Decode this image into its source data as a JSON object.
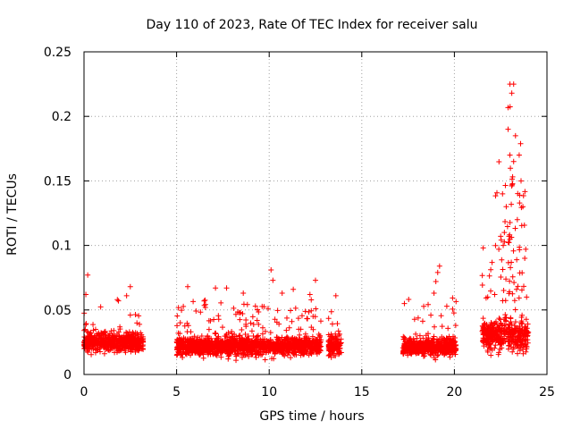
{
  "chart_data": {
    "type": "scatter",
    "title": "Day 110 of 2023, Rate Of TEC Index for receiver salu",
    "xlabel": "GPS time / hours",
    "ylabel": "ROTI / TECUs",
    "xlim": [
      0,
      25
    ],
    "ylim": [
      0,
      0.25
    ],
    "x_ticks": [
      0,
      5,
      10,
      15,
      20,
      25
    ],
    "x_tick_labels": [
      "0",
      "5",
      "10",
      "15",
      "20",
      "25"
    ],
    "y_ticks": [
      0,
      0.05,
      0.1,
      0.15,
      0.2,
      0.25
    ],
    "y_tick_labels": [
      "0",
      "0.05",
      "0.1",
      "0.15",
      "0.2",
      "0.25"
    ],
    "grid": true,
    "marker": "+",
    "color": "#ff0000",
    "segments": [
      {
        "x_start": 0.0,
        "x_end": 3.2,
        "base": 0.025,
        "spread": 0.012,
        "peak": 0.077
      },
      {
        "x_start": 5.0,
        "x_end": 12.8,
        "base": 0.022,
        "spread": 0.012,
        "peak": 0.081
      },
      {
        "x_start": 13.2,
        "x_end": 13.9,
        "base": 0.022,
        "spread": 0.012,
        "peak": 0.061
      },
      {
        "x_start": 17.2,
        "x_end": 20.1,
        "base": 0.022,
        "spread": 0.012,
        "peak": 0.084
      },
      {
        "x_start": 21.5,
        "x_end": 24.0,
        "base": 0.03,
        "spread": 0.02,
        "peak": 0.225
      }
    ],
    "highlights": [
      {
        "x": 0.2,
        "y": 0.077
      },
      {
        "x": 0.1,
        "y": 0.062
      },
      {
        "x": 1.8,
        "y": 0.058
      },
      {
        "x": 2.5,
        "y": 0.068
      },
      {
        "x": 2.3,
        "y": 0.061
      },
      {
        "x": 5.6,
        "y": 0.068
      },
      {
        "x": 7.1,
        "y": 0.067
      },
      {
        "x": 7.7,
        "y": 0.067
      },
      {
        "x": 8.6,
        "y": 0.063
      },
      {
        "x": 10.1,
        "y": 0.081
      },
      {
        "x": 10.2,
        "y": 0.073
      },
      {
        "x": 10.7,
        "y": 0.063
      },
      {
        "x": 11.3,
        "y": 0.066
      },
      {
        "x": 12.5,
        "y": 0.073
      },
      {
        "x": 12.2,
        "y": 0.062
      },
      {
        "x": 13.6,
        "y": 0.061
      },
      {
        "x": 17.3,
        "y": 0.055
      },
      {
        "x": 18.9,
        "y": 0.063
      },
      {
        "x": 19.2,
        "y": 0.084
      },
      {
        "x": 19.1,
        "y": 0.079
      },
      {
        "x": 19.0,
        "y": 0.072
      },
      {
        "x": 21.8,
        "y": 0.06
      },
      {
        "x": 22.4,
        "y": 0.097
      },
      {
        "x": 22.6,
        "y": 0.14
      },
      {
        "x": 22.8,
        "y": 0.13
      },
      {
        "x": 22.9,
        "y": 0.19
      },
      {
        "x": 23.0,
        "y": 0.225
      },
      {
        "x": 23.2,
        "y": 0.225
      },
      {
        "x": 23.1,
        "y": 0.218
      },
      {
        "x": 23.0,
        "y": 0.17
      },
      {
        "x": 23.3,
        "y": 0.185
      },
      {
        "x": 23.5,
        "y": 0.17
      },
      {
        "x": 23.6,
        "y": 0.15
      },
      {
        "x": 23.7,
        "y": 0.13
      },
      {
        "x": 23.2,
        "y": 0.165
      },
      {
        "x": 23.4,
        "y": 0.12
      },
      {
        "x": 23.8,
        "y": 0.09
      },
      {
        "x": 22.7,
        "y": 0.11
      },
      {
        "x": 23.9,
        "y": 0.06
      }
    ]
  }
}
